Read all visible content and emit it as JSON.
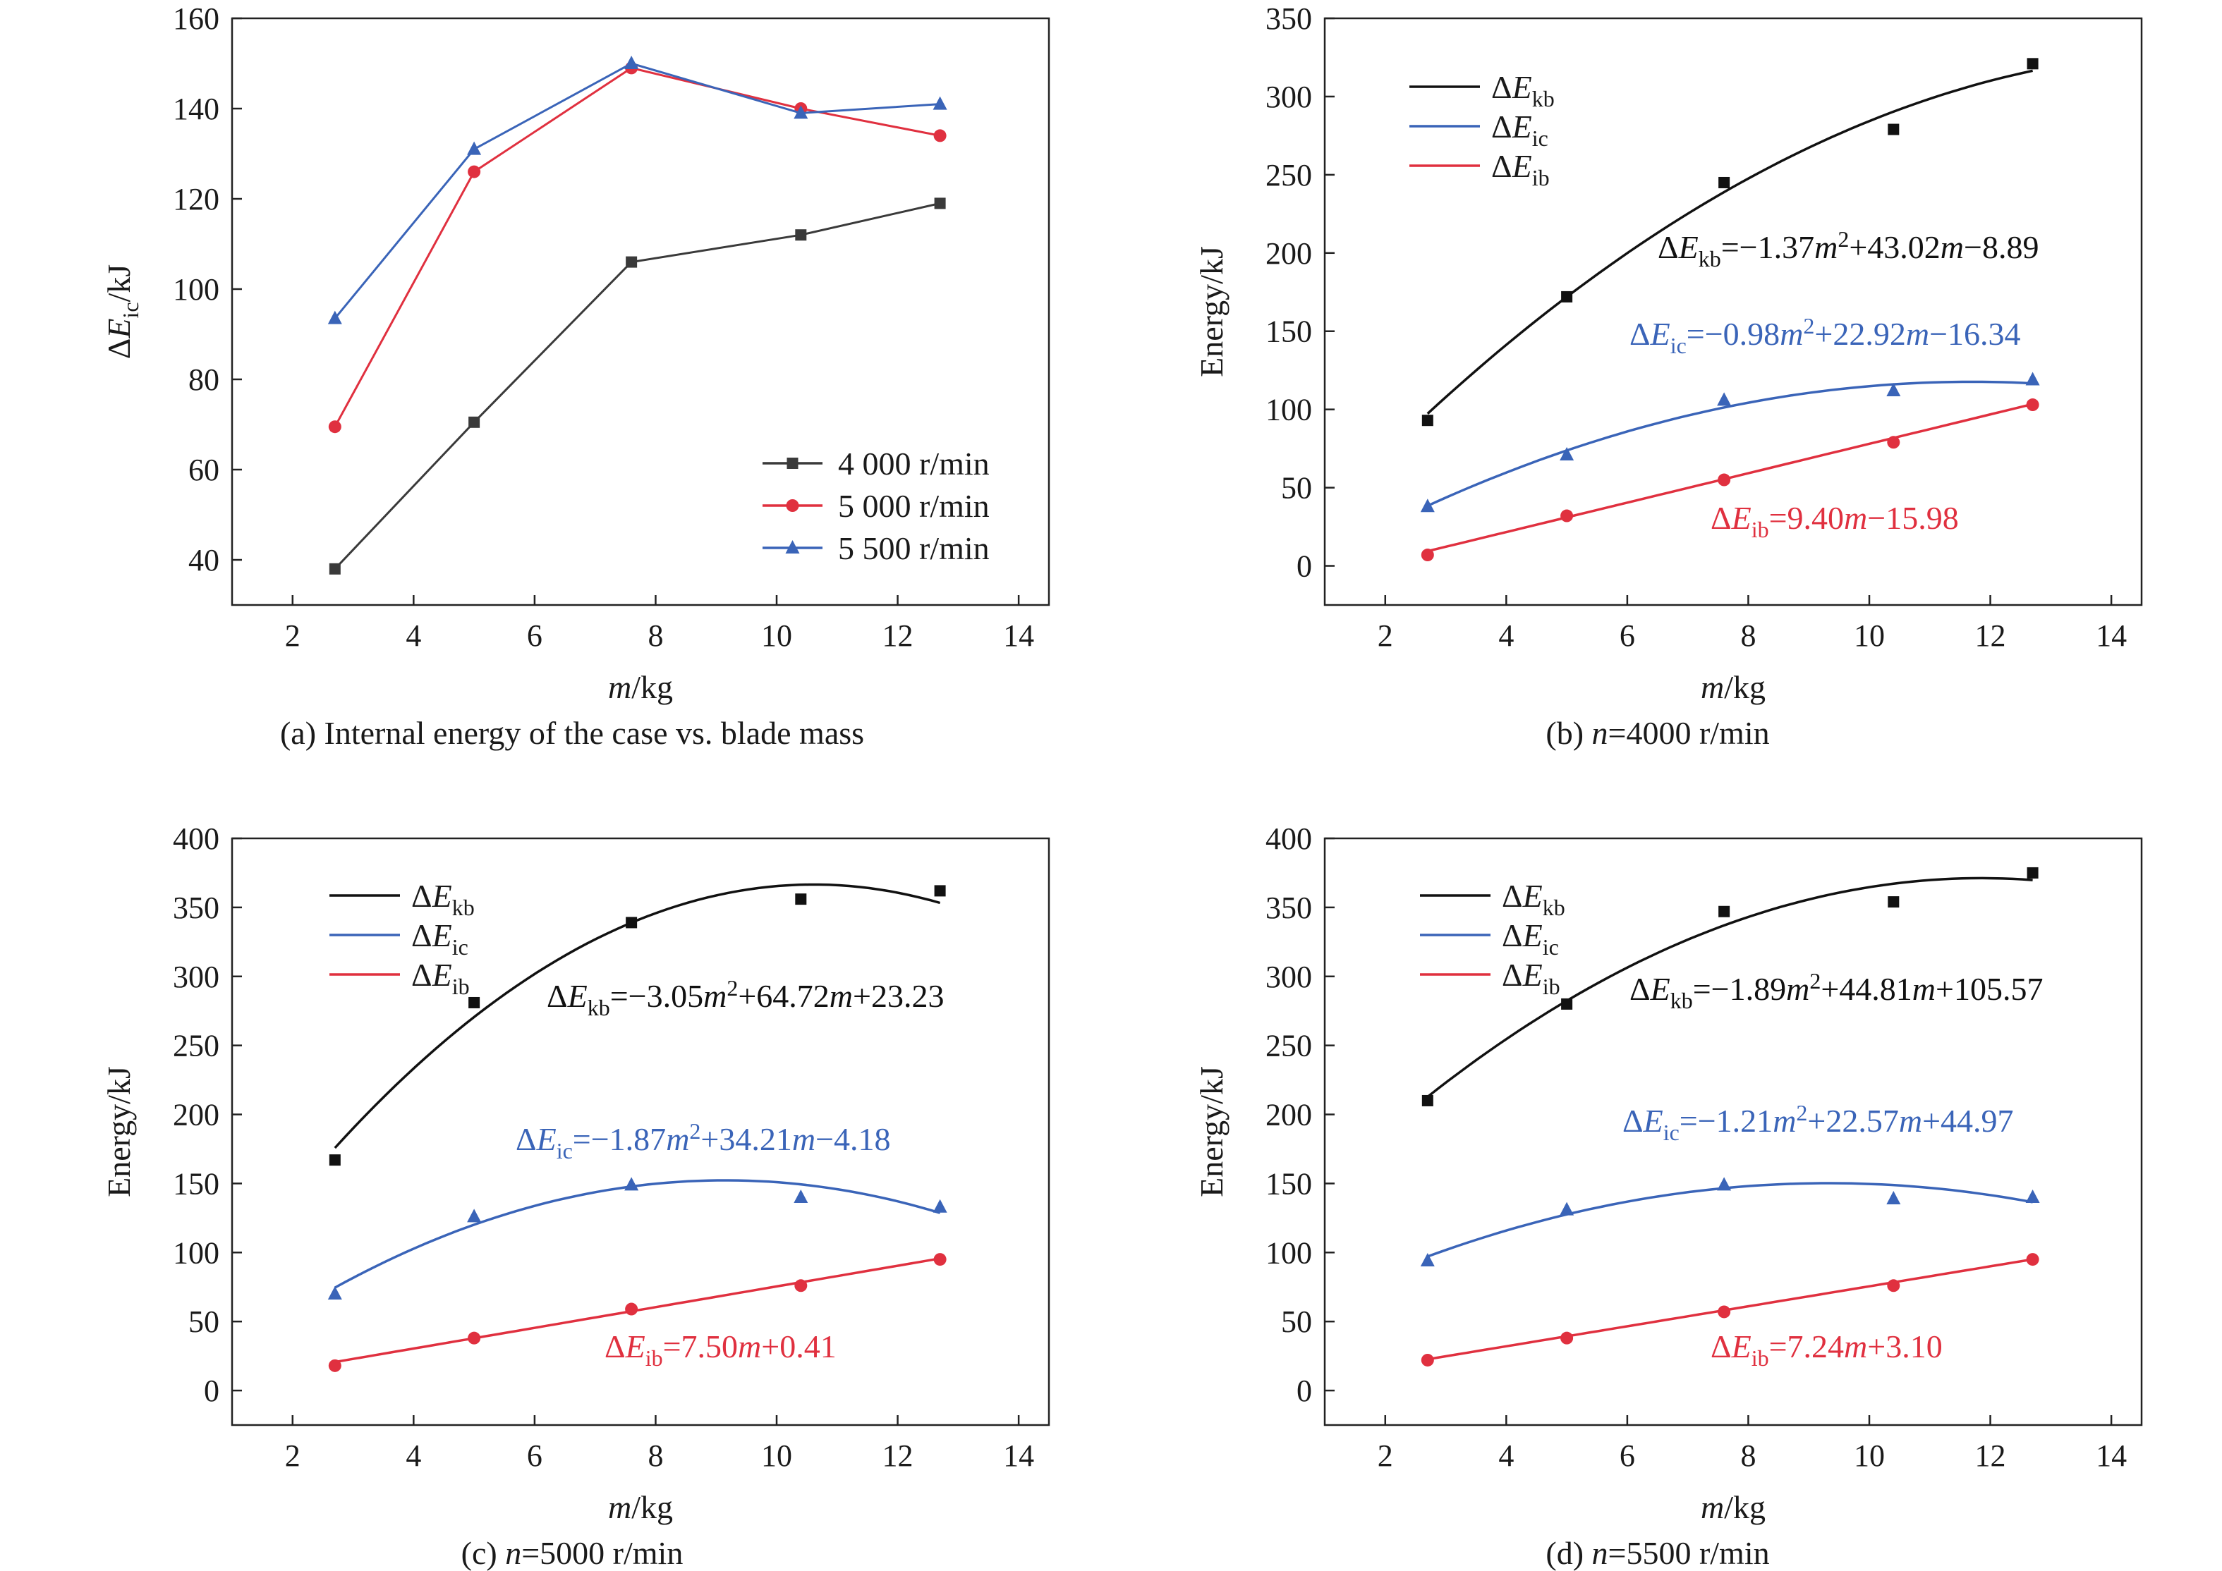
{
  "chart_data": [
    {
      "type": "line",
      "caption": "(a) Internal energy of the case vs. blade mass",
      "xlabel": "m/kg",
      "ylabel": "ΔE_ic/kJ",
      "xlim": [
        1,
        14.5
      ],
      "ylim": [
        30,
        160
      ],
      "xticks": [
        2,
        4,
        6,
        8,
        10,
        12,
        14
      ],
      "yticks": [
        40,
        60,
        80,
        100,
        120,
        140,
        160
      ],
      "legend_position": "bottom-right",
      "x": [
        2.7,
        5.0,
        7.6,
        10.4,
        12.7
      ],
      "series": [
        {
          "name": "4 000 r/min",
          "color": "#3a3a3a",
          "marker": "square",
          "values": [
            38,
            70.5,
            106,
            112,
            119
          ]
        },
        {
          "name": "5 000 r/min",
          "color": "#e0303f",
          "marker": "circle",
          "values": [
            69.5,
            126,
            149,
            140,
            134
          ]
        },
        {
          "name": "5 500 r/min",
          "color": "#3a64b8",
          "marker": "triangle",
          "values": [
            93.5,
            131,
            150,
            139,
            141
          ]
        }
      ]
    },
    {
      "type": "scatter",
      "caption": "(b) n=4000 r/min",
      "xlabel": "m/kg",
      "ylabel": "Energy/kJ",
      "xlim": [
        1,
        14.5
      ],
      "ylim": [
        -25,
        350
      ],
      "xticks": [
        2,
        4,
        6,
        8,
        10,
        12,
        14
      ],
      "yticks": [
        0,
        50,
        100,
        150,
        200,
        250,
        300,
        350
      ],
      "legend_position": "top-left",
      "x": [
        2.7,
        5.0,
        7.6,
        10.4,
        12.7
      ],
      "fit_range": [
        2.7,
        12.7
      ],
      "series": [
        {
          "name": "ΔE_kb",
          "color": "#111111",
          "marker": "square",
          "values": [
            93,
            172,
            245,
            279,
            321
          ],
          "fit": {
            "a": -1.37,
            "b": 43.02,
            "c": -8.89
          },
          "equation": {
            "sym": "ΔE",
            "sub": "kb",
            "rest": "=−1.37m²+43.02m−8.89"
          }
        },
        {
          "name": "ΔE_ic",
          "color": "#3a64b8",
          "marker": "triangle",
          "values": [
            38,
            71,
            106,
            112,
            119
          ],
          "fit": {
            "a": -0.98,
            "b": 22.92,
            "c": -16.34
          },
          "equation": {
            "sym": "ΔE",
            "sub": "ic",
            "rest": "=−0.98m²+22.92m−16.34"
          }
        },
        {
          "name": "ΔE_ib",
          "color": "#e0303f",
          "marker": "circle",
          "values": [
            7,
            32,
            55,
            79,
            103
          ],
          "fit": {
            "a": 0,
            "b": 9.4,
            "c": -15.98
          },
          "equation": {
            "sym": "ΔE",
            "sub": "ib",
            "rest": "=9.40m−15.98"
          }
        }
      ]
    },
    {
      "type": "scatter",
      "caption": "(c) n=5000 r/min",
      "xlabel": "m/kg",
      "ylabel": "Energy/kJ",
      "xlim": [
        1,
        14.5
      ],
      "ylim": [
        -25,
        400
      ],
      "xticks": [
        2,
        4,
        6,
        8,
        10,
        12,
        14
      ],
      "yticks": [
        0,
        50,
        100,
        150,
        200,
        250,
        300,
        350,
        400
      ],
      "legend_position": "top-left",
      "x": [
        2.7,
        5.0,
        7.6,
        10.4,
        12.7
      ],
      "fit_range": [
        2.7,
        12.7
      ],
      "series": [
        {
          "name": "ΔE_kb",
          "color": "#111111",
          "marker": "square",
          "values": [
            167,
            281,
            339,
            356,
            362
          ],
          "fit": {
            "a": -3.05,
            "b": 64.72,
            "c": 23.23
          },
          "equation": {
            "sym": "ΔE",
            "sub": "kb",
            "rest": "=−3.05m²+64.72m+23.23"
          }
        },
        {
          "name": "ΔE_ic",
          "color": "#3a64b8",
          "marker": "triangle",
          "values": [
            70,
            126,
            149,
            140,
            133
          ],
          "fit": {
            "a": -1.87,
            "b": 34.21,
            "c": -4.18
          },
          "equation": {
            "sym": "ΔE",
            "sub": "ic",
            "rest": "=−1.87m²+34.21m−4.18"
          }
        },
        {
          "name": "ΔE_ib",
          "color": "#e0303f",
          "marker": "circle",
          "values": [
            18,
            38,
            59,
            76,
            95
          ],
          "fit": {
            "a": 0,
            "b": 7.5,
            "c": 0.41
          },
          "equation": {
            "sym": "ΔE",
            "sub": "ib",
            "rest": "=7.50m+0.41"
          }
        }
      ]
    },
    {
      "type": "scatter",
      "caption": "(d) n=5500 r/min",
      "xlabel": "m/kg",
      "ylabel": "Energy/kJ",
      "xlim": [
        1,
        14.5
      ],
      "ylim": [
        -25,
        400
      ],
      "xticks": [
        2,
        4,
        6,
        8,
        10,
        12,
        14
      ],
      "yticks": [
        0,
        50,
        100,
        150,
        200,
        250,
        300,
        350,
        400
      ],
      "legend_position": "top-left",
      "x": [
        2.7,
        5.0,
        7.6,
        10.4,
        12.7
      ],
      "fit_range": [
        2.7,
        12.7
      ],
      "series": [
        {
          "name": "ΔE_kb",
          "color": "#111111",
          "marker": "square",
          "values": [
            210,
            280,
            347,
            354,
            375
          ],
          "fit": {
            "a": -1.89,
            "b": 44.81,
            "c": 105.57
          },
          "equation": {
            "sym": "ΔE",
            "sub": "kb",
            "rest": "=−1.89m²+44.81m+105.57"
          }
        },
        {
          "name": "ΔE_ic",
          "color": "#3a64b8",
          "marker": "triangle",
          "values": [
            94,
            131,
            149,
            139,
            140
          ],
          "fit": {
            "a": -1.21,
            "b": 22.57,
            "c": 44.97
          },
          "equation": {
            "sym": "ΔE",
            "sub": "ic",
            "rest": "=−1.21m²+22.57m+44.97"
          }
        },
        {
          "name": "ΔE_ib",
          "color": "#e0303f",
          "marker": "circle",
          "values": [
            22,
            38,
            57,
            76,
            95
          ],
          "fit": {
            "a": 0,
            "b": 7.24,
            "c": 3.1
          },
          "equation": {
            "sym": "ΔE",
            "sub": "ib",
            "rest": "=7.24m+3.10"
          }
        }
      ]
    }
  ]
}
